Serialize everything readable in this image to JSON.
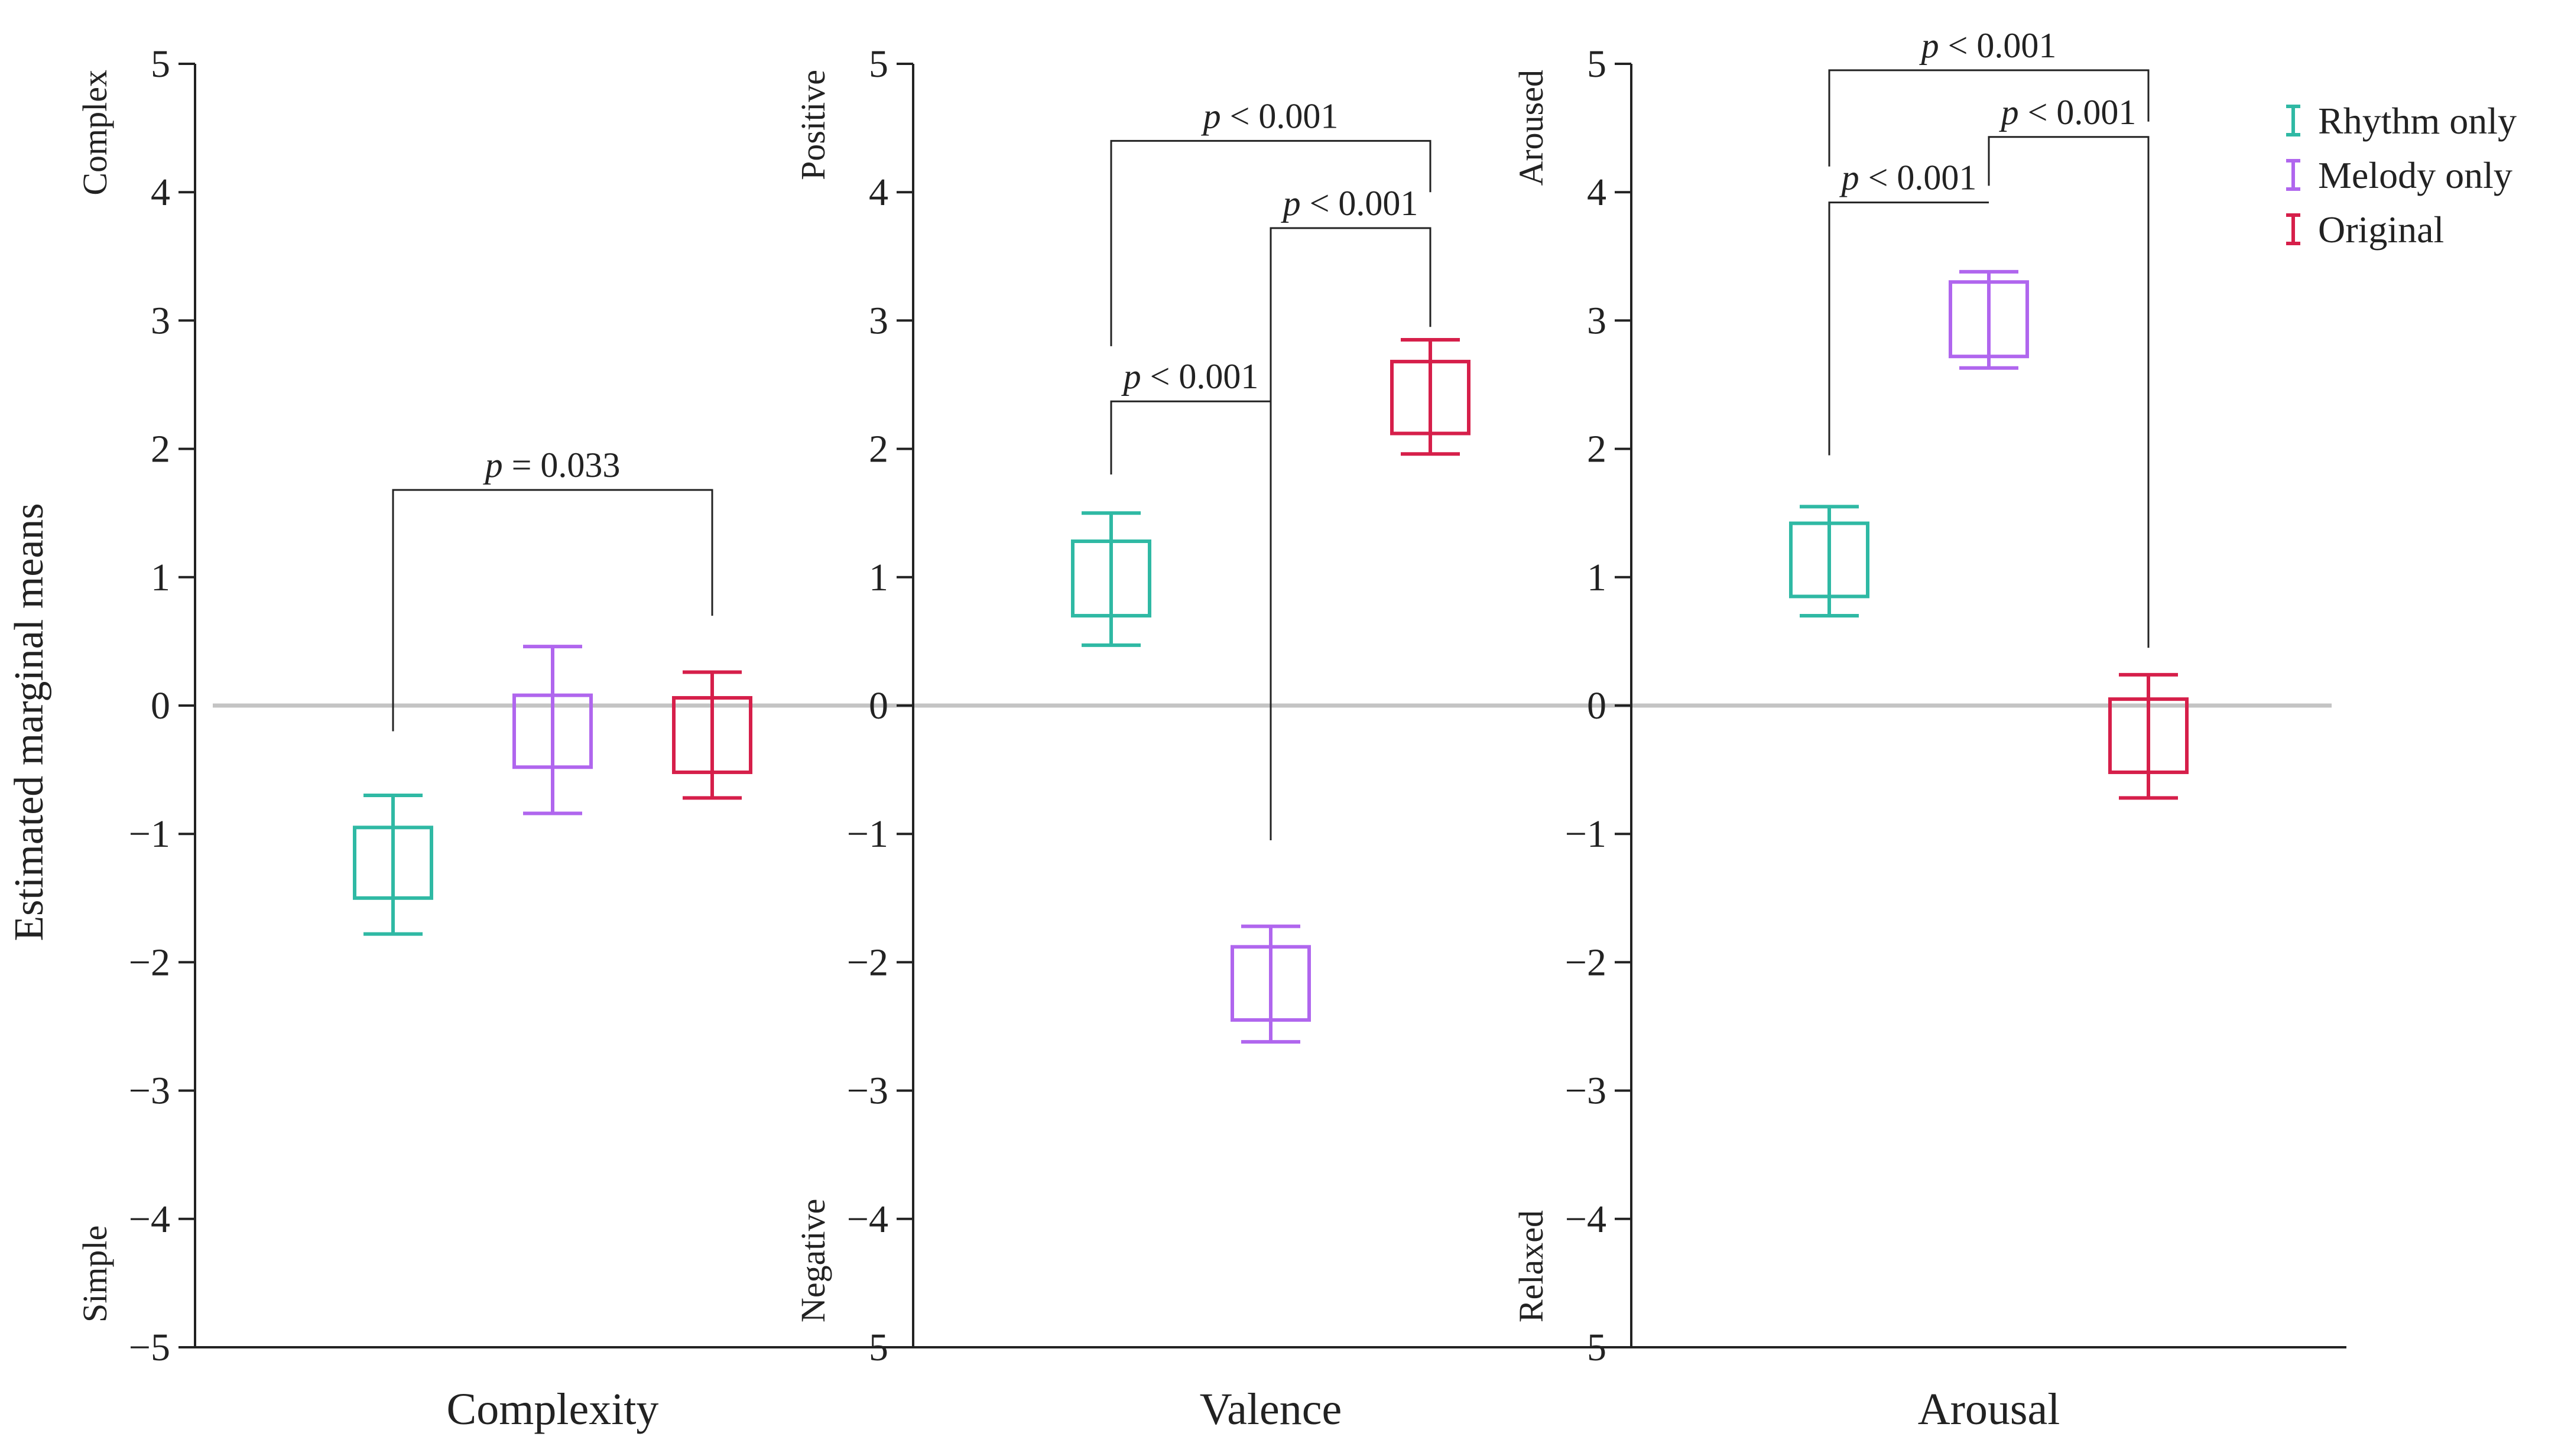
{
  "chart_data": {
    "type": "box_errorbar",
    "ylabel": "Estimated marginal means",
    "ylim": [
      -5,
      5
    ],
    "yticks": [
      5,
      4,
      3,
      2,
      1,
      0,
      -1,
      -2,
      -3,
      -4,
      -5
    ],
    "ytick_labels": [
      "5",
      "4",
      "3",
      "2",
      "1",
      "0",
      "−1",
      "−2",
      "−3",
      "−4",
      "−5"
    ],
    "zero_line": true,
    "grid": false,
    "legend_position": "top-right",
    "series": [
      {
        "name": "Rhythm only",
        "color": "#2fb9a4"
      },
      {
        "name": "Melody only",
        "color": "#b066ee"
      },
      {
        "name": "Original",
        "color": "#d61f4a"
      }
    ],
    "panels": [
      {
        "xlabel": "Complexity",
        "top_label": "Complex",
        "bottom_label": "Simple",
        "values": [
          {
            "series": "Rhythm only",
            "box": [
              -1.5,
              -0.95
            ],
            "whisker": [
              -1.78,
              -0.7
            ]
          },
          {
            "series": "Melody only",
            "box": [
              -0.48,
              0.08
            ],
            "whisker": [
              -0.84,
              0.46
            ]
          },
          {
            "series": "Original",
            "box": [
              -0.52,
              0.06
            ],
            "whisker": [
              -0.72,
              0.26
            ]
          }
        ],
        "comparisons": [
          {
            "from": "Rhythm only",
            "to": "Original",
            "level": 1.68,
            "left_drop": -0.2,
            "right_drop": 0.7,
            "label": "= 0.033"
          }
        ]
      },
      {
        "xlabel": "Valence",
        "top_label": "Positive",
        "bottom_label": "Negative",
        "values": [
          {
            "series": "Rhythm only",
            "box": [
              0.7,
              1.28
            ],
            "whisker": [
              0.47,
              1.5
            ]
          },
          {
            "series": "Melody only",
            "box": [
              -2.45,
              -1.88
            ],
            "whisker": [
              -2.62,
              -1.72
            ]
          },
          {
            "series": "Original",
            "box": [
              2.12,
              2.68
            ],
            "whisker": [
              1.96,
              2.85
            ]
          }
        ],
        "comparisons": [
          {
            "from": "Rhythm only",
            "to": "Melody only",
            "level": 2.37,
            "left_drop": 1.8,
            "right_drop": -1.05,
            "label": "< 0.001"
          },
          {
            "from": "Melody only",
            "to": "Original",
            "level": 3.72,
            "left_drop": 2.37,
            "right_drop": 2.95,
            "label": "< 0.001"
          },
          {
            "from": "Rhythm only",
            "to": "Original",
            "level": 4.4,
            "left_drop": 2.8,
            "right_drop": 4.0,
            "label": "< 0.001"
          }
        ]
      },
      {
        "xlabel": "Arousal",
        "top_label": "Aroused",
        "bottom_label": "Relaxed",
        "values": [
          {
            "series": "Rhythm only",
            "box": [
              0.85,
              1.42
            ],
            "whisker": [
              0.7,
              1.55
            ]
          },
          {
            "series": "Melody only",
            "box": [
              2.72,
              3.3
            ],
            "whisker": [
              2.63,
              3.38
            ]
          },
          {
            "series": "Original",
            "box": [
              -0.52,
              0.05
            ],
            "whisker": [
              -0.72,
              0.24
            ]
          }
        ],
        "comparisons": [
          {
            "from": "Rhythm only",
            "to": "Melody only",
            "level": 3.92,
            "left_drop": 1.95,
            "right_drop": 3.92,
            "label": "< 0.001"
          },
          {
            "from": "Melody only",
            "to": "Original",
            "level": 4.43,
            "left_drop": 4.05,
            "right_drop": 0.45,
            "label": "< 0.001"
          },
          {
            "from": "Rhythm only",
            "to": "Original",
            "level": 4.95,
            "left_drop": 4.2,
            "right_drop": 4.55,
            "label": "< 0.001"
          }
        ]
      }
    ],
    "p_symbol": "p"
  }
}
